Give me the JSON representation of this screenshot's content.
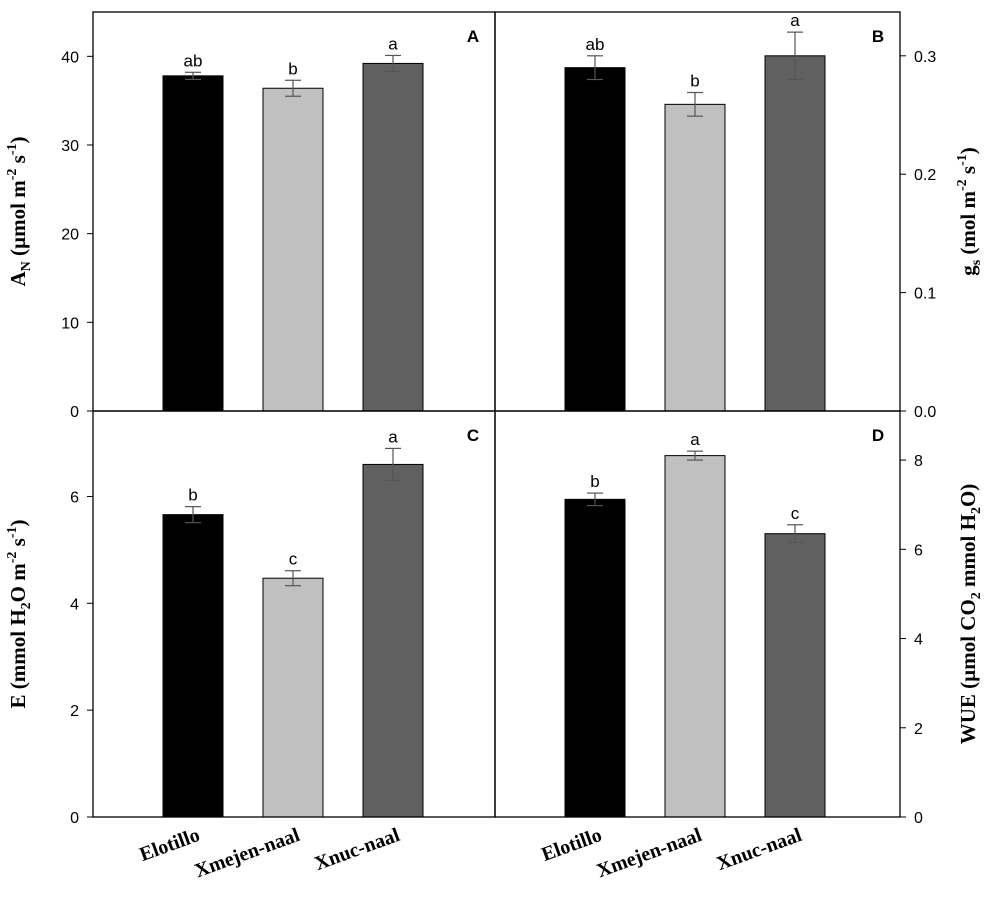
{
  "chart_data": [
    {
      "panel": "A",
      "type": "bar",
      "categories": [
        "Elotillo",
        "Xmejen-naal",
        "Xnuc-naal"
      ],
      "values": [
        37.8,
        36.4,
        39.2
      ],
      "errors": [
        0.4,
        0.9,
        0.9
      ],
      "sig": [
        "ab",
        "b",
        "a"
      ],
      "colors": [
        "#000000",
        "#c0c0c0",
        "#606060"
      ],
      "ylim": [
        0,
        45
      ],
      "yticks": [
        0,
        10,
        20,
        30,
        40
      ],
      "ylabel_parts": [
        {
          "t": "A",
          "s": "n"
        },
        {
          "t": "N",
          "s": "sub"
        },
        {
          "t": " (µmol m",
          "s": "n"
        },
        {
          "t": "-2",
          "s": "sup"
        },
        {
          "t": " s",
          "s": "n"
        },
        {
          "t": "-1",
          "s": "sup"
        },
        {
          "t": ")",
          "s": "n"
        }
      ],
      "axis_side": "left"
    },
    {
      "panel": "B",
      "type": "bar",
      "categories": [
        "Elotillo",
        "Xmejen-naal",
        "Xnuc-naal"
      ],
      "values": [
        0.29,
        0.259,
        0.3
      ],
      "errors": [
        0.01,
        0.01,
        0.02
      ],
      "sig": [
        "ab",
        "b",
        "a"
      ],
      "colors": [
        "#000000",
        "#c0c0c0",
        "#606060"
      ],
      "ylim": [
        0,
        0.337
      ],
      "yticks": [
        0.0,
        0.1,
        0.2,
        0.3
      ],
      "ytick_labels": [
        "0.0",
        "0.1",
        "0.2",
        "0.3"
      ],
      "ylabel_parts": [
        {
          "t": "g",
          "s": "n"
        },
        {
          "t": "s",
          "s": "sub"
        },
        {
          "t": " (mol m",
          "s": "n"
        },
        {
          "t": "-2",
          "s": "sup"
        },
        {
          "t": " s",
          "s": "n"
        },
        {
          "t": "-1",
          "s": "sup"
        },
        {
          "t": ")",
          "s": "n"
        }
      ],
      "axis_side": "right"
    },
    {
      "panel": "C",
      "type": "bar",
      "categories": [
        "Elotillo",
        "Xmejen-naal",
        "Xnuc-naal"
      ],
      "values": [
        5.66,
        4.47,
        6.6
      ],
      "errors": [
        0.15,
        0.14,
        0.3
      ],
      "sig": [
        "b",
        "c",
        "a"
      ],
      "colors": [
        "#000000",
        "#c0c0c0",
        "#606060"
      ],
      "ylim": [
        0,
        7.6
      ],
      "yticks": [
        0,
        2,
        4,
        6
      ],
      "ylabel_parts": [
        {
          "t": "E (mmol H",
          "s": "n"
        },
        {
          "t": "2",
          "s": "sub"
        },
        {
          "t": "O m",
          "s": "n"
        },
        {
          "t": "-2",
          "s": "sup"
        },
        {
          "t": " s",
          "s": "n"
        },
        {
          "t": "-1",
          "s": "sup"
        },
        {
          "t": ")",
          "s": "n"
        }
      ],
      "axis_side": "left"
    },
    {
      "panel": "D",
      "type": "bar",
      "categories": [
        "Elotillo",
        "Xmejen-naal",
        "Xnuc-naal"
      ],
      "values": [
        7.12,
        8.1,
        6.35
      ],
      "errors": [
        0.14,
        0.1,
        0.2
      ],
      "sig": [
        "b",
        "a",
        "c"
      ],
      "colors": [
        "#000000",
        "#c0c0c0",
        "#606060"
      ],
      "ylim": [
        0,
        9.1
      ],
      "yticks": [
        0,
        2,
        4,
        6,
        8
      ],
      "ylabel_parts": [
        {
          "t": "WUE (µmol CO",
          "s": "n"
        },
        {
          "t": "2",
          "s": "sub"
        },
        {
          "t": " mmol H",
          "s": "n"
        },
        {
          "t": "2",
          "s": "sub"
        },
        {
          "t": "O)",
          "s": "n"
        }
      ],
      "axis_side": "right"
    }
  ]
}
